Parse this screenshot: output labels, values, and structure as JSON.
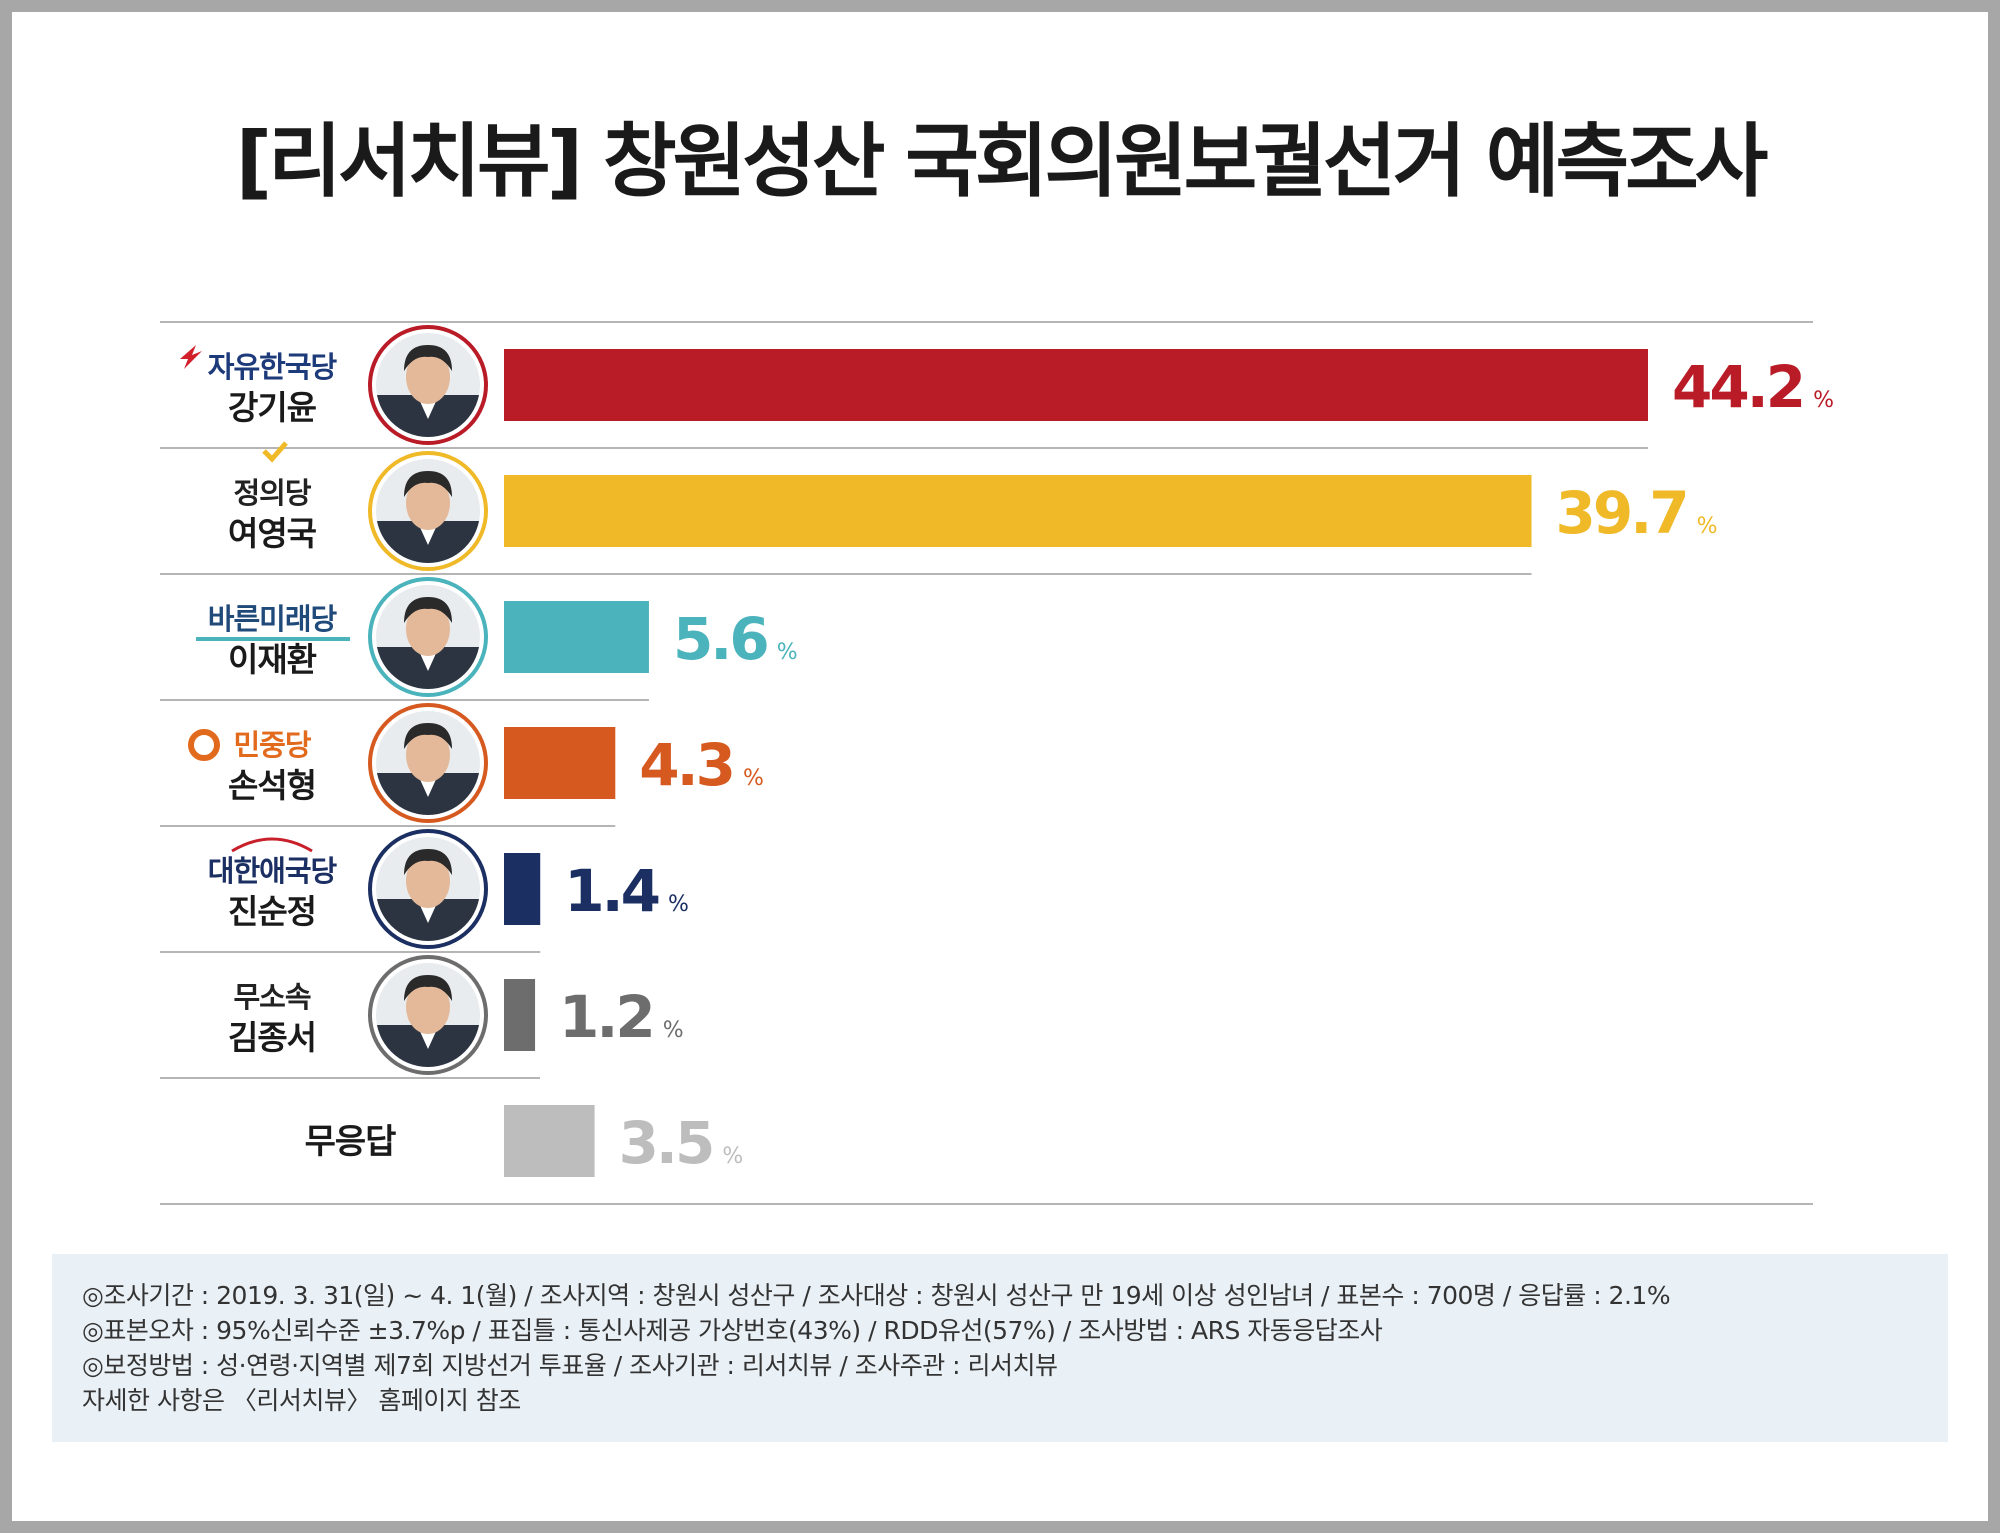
{
  "title": "[리서치뷰] 창원성산 국회의원보궐선거 예측조사",
  "chart_data": {
    "type": "bar",
    "orientation": "horizontal",
    "unit": "%",
    "xlim": [
      0,
      50
    ],
    "rows": [
      {
        "party": "자유한국당",
        "candidate": "강기윤",
        "value": 44.2,
        "color": "#b91c27",
        "party_color": "#1d3a7a",
        "logo_icon": "flame-icon"
      },
      {
        "party": "정의당",
        "candidate": "여영국",
        "value": 39.7,
        "color": "#f0b928",
        "party_color": "#222222",
        "logo_icon": "checkmark-icon"
      },
      {
        "party": "바른미래당",
        "candidate": "이재환",
        "value": 5.6,
        "color": "#4ab3bb",
        "party_color": "#1f4a7a",
        "logo_icon": "underline-icon"
      },
      {
        "party": "민중당",
        "candidate": "손석형",
        "value": 4.3,
        "color": "#d65a20",
        "party_color": "#e26a1d",
        "logo_icon": "minjung-logo-icon"
      },
      {
        "party": "대한애국당",
        "candidate": "진순정",
        "value": 1.4,
        "color": "#1b2f63",
        "party_color": "#1b2f63",
        "logo_icon": "arc-icon"
      },
      {
        "party": "무소속",
        "candidate": "김종서",
        "value": 1.2,
        "color": "#6d6d6d",
        "party_color": "#222222",
        "logo_icon": ""
      },
      {
        "party": "",
        "candidate": "무응답",
        "value": 3.5,
        "color": "#bdbdbd",
        "party_color": "#222222",
        "logo_icon": ""
      }
    ]
  },
  "notes": [
    "◎조사기간 : 2019. 3. 31(일) ~ 4. 1(월) / 조사지역 : 창원시 성산구 / 조사대상 : 창원시 성산구 만 19세 이상 성인남녀 / 표본수 : 700명 / 응답률 : 2.1%",
    "◎표본오차 : 95%신뢰수준 ±3.7%p  / 표집틀 : 통신사제공 가상번호(43%) / RDD유선(57%) / 조사방법 : ARS 자동응답조사",
    "◎보정방법 : 성·연령·지역별 제7회 지방선거 투표율 / 조사기관 : 리서치뷰 / 조사주관 : 리서치뷰",
    "자세한 사항은 〈리서치뷰〉 홈페이지 참조"
  ]
}
